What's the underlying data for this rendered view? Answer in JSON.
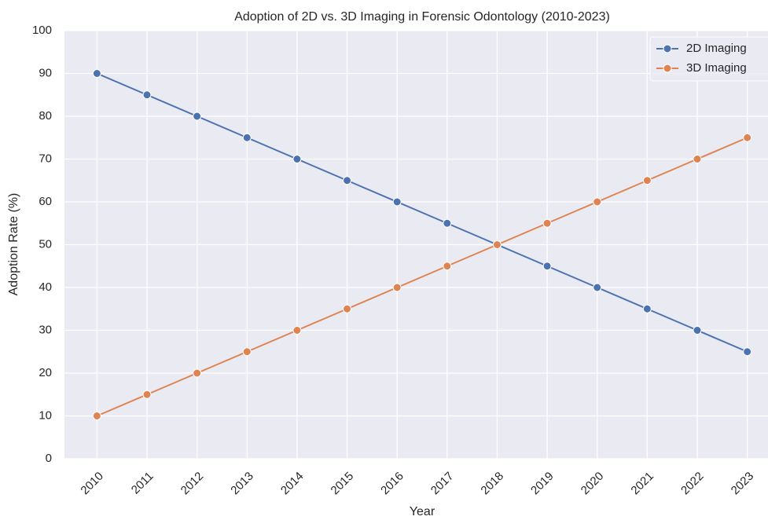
{
  "chart_data": {
    "type": "line",
    "title": "Adoption of 2D vs. 3D Imaging in Forensic Odontology (2010-2023)",
    "xlabel": "Year",
    "ylabel": "Adoption Rate (%)",
    "x": [
      2010,
      2011,
      2012,
      2013,
      2014,
      2015,
      2016,
      2017,
      2018,
      2019,
      2020,
      2021,
      2022,
      2023
    ],
    "series": [
      {
        "name": "2D Imaging",
        "color": "#4c72b0",
        "values": [
          90,
          85,
          80,
          75,
          70,
          65,
          60,
          55,
          50,
          45,
          40,
          35,
          30,
          25
        ]
      },
      {
        "name": "3D Imaging",
        "color": "#dd8452",
        "values": [
          10,
          15,
          20,
          25,
          30,
          35,
          40,
          45,
          50,
          55,
          60,
          65,
          70,
          75
        ]
      }
    ],
    "xlim": [
      2009.35,
      2023.65
    ],
    "xticks": [
      2010,
      2011,
      2012,
      2013,
      2014,
      2015,
      2016,
      2017,
      2018,
      2019,
      2020,
      2021,
      2022,
      2023
    ],
    "ylim": [
      0,
      100
    ],
    "yticks": [
      0,
      10,
      20,
      30,
      40,
      50,
      60,
      70,
      80,
      90,
      100
    ],
    "grid": true,
    "legend": "upper right"
  }
}
